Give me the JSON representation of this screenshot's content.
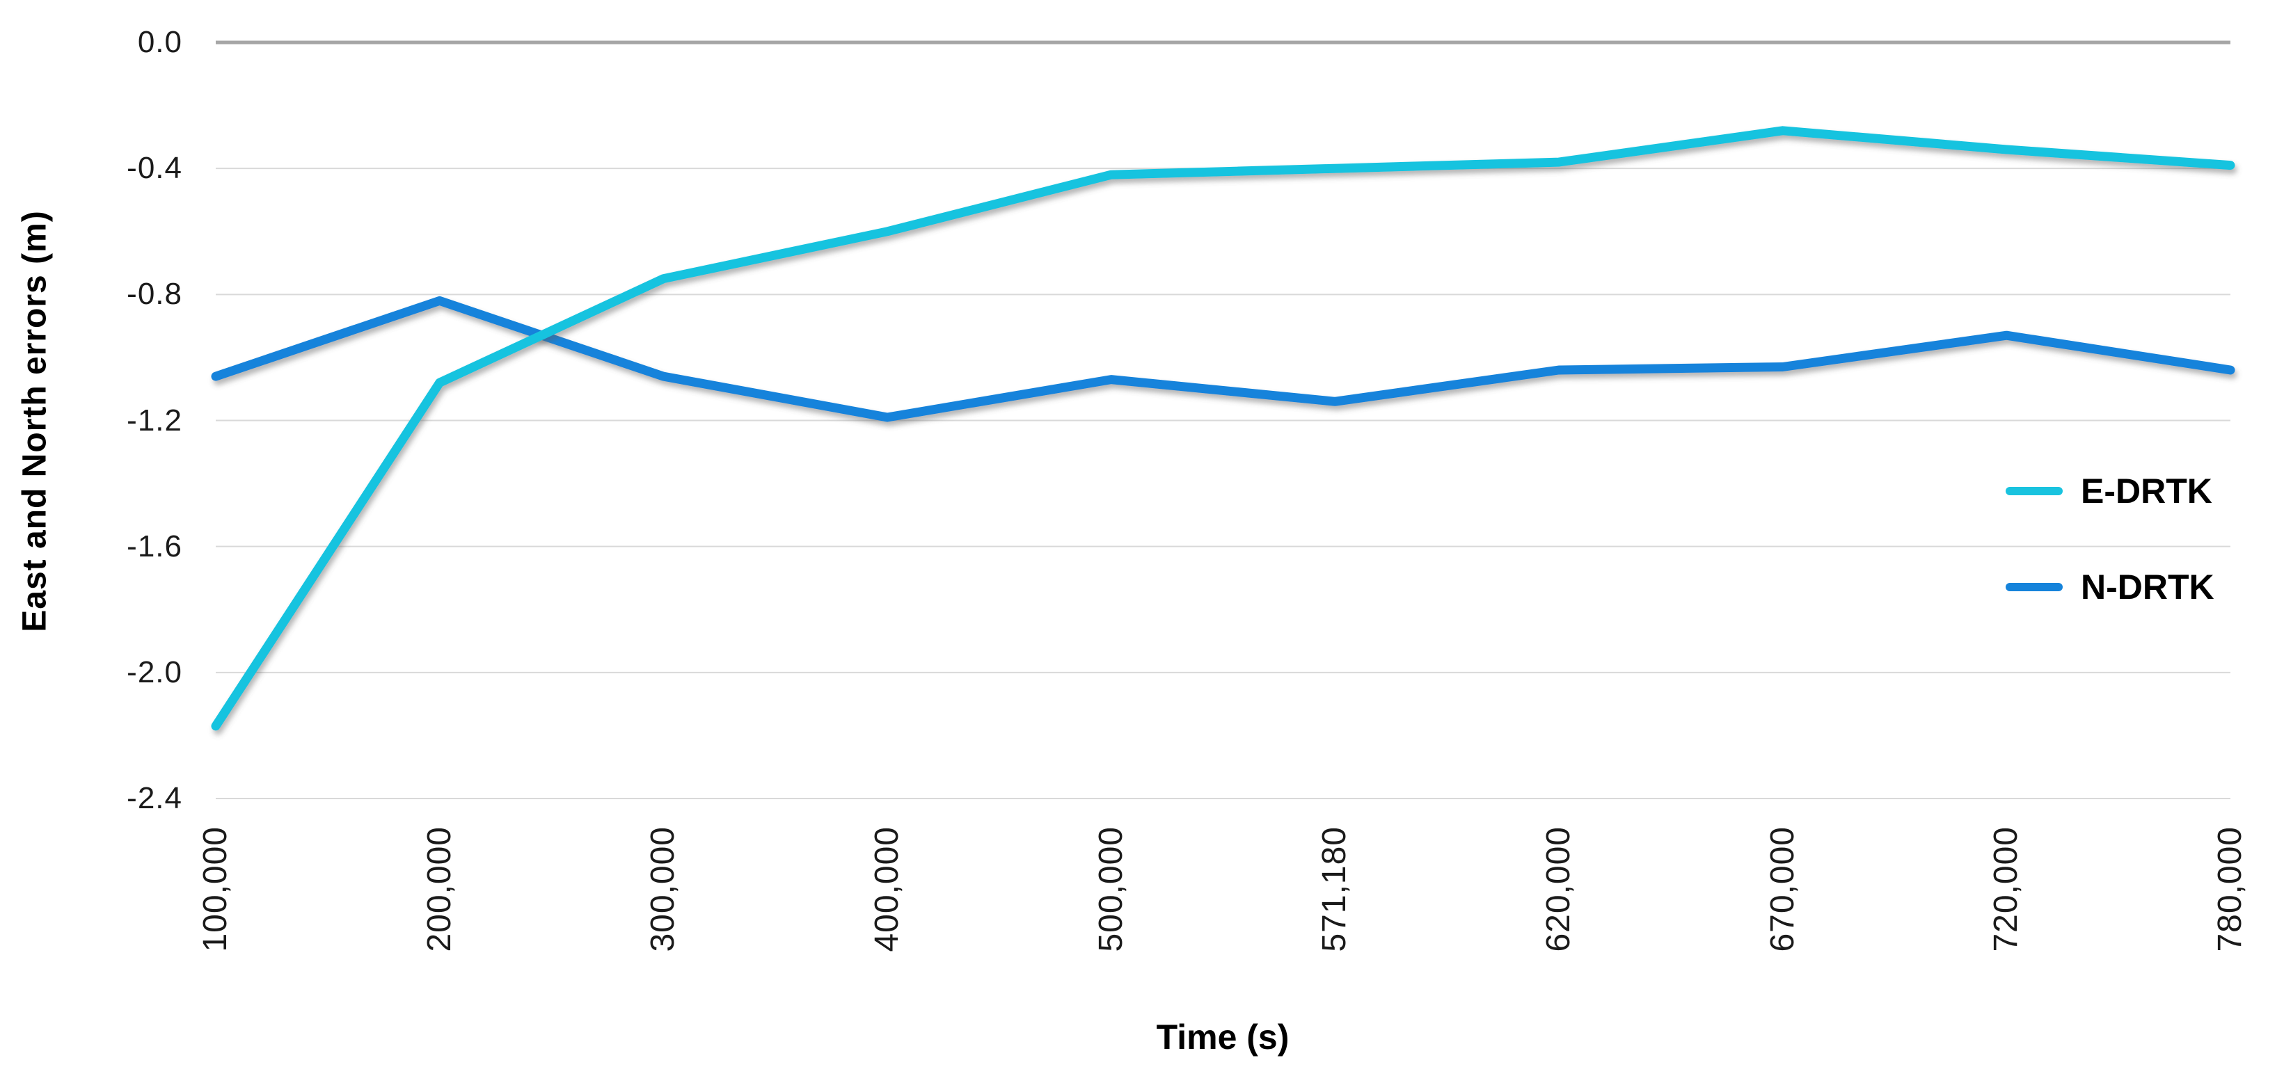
{
  "page": {
    "background": "#FFFFFF"
  },
  "chart_data": {
    "type": "line",
    "title": "",
    "categories": [
      "100,000",
      "200,000",
      "300,000",
      "400,000",
      "500,000",
      "571,180",
      "620,000",
      "670,000",
      "720,000",
      "780,000"
    ],
    "series": [
      {
        "name": "E-DRTK",
        "color": "#19C3DF",
        "values": [
          -2.17,
          -1.08,
          -0.75,
          -0.6,
          -0.42,
          -0.4,
          -0.38,
          -0.28,
          -0.34,
          -0.39
        ]
      },
      {
        "name": "N-DRTK",
        "color": "#1583DB",
        "values": [
          -1.06,
          -0.82,
          -1.06,
          -1.19,
          -1.07,
          -1.14,
          -1.04,
          -1.03,
          -0.93,
          -1.04
        ]
      }
    ],
    "xlabel": "Time (s)",
    "ylabel": "East and North errors  (m)",
    "ylim": [
      -2.4,
      0.0
    ],
    "yticks": [
      0.0,
      -0.4,
      -0.8,
      -1.2,
      -1.6,
      -2.0,
      -2.4
    ],
    "ytick_labels": [
      "0.0",
      "-0.4",
      "-0.8",
      "-1.2",
      "-1.6",
      "-2.0",
      "-2.4"
    ],
    "grid": true,
    "legend_position": "right",
    "line_width": 13
  },
  "styles": {
    "grid_color": "#D9D9D9",
    "zero_line_color": "#A6A6A6",
    "tick_text_color": "#1A1A1A",
    "axis_title_color": "#000000"
  }
}
